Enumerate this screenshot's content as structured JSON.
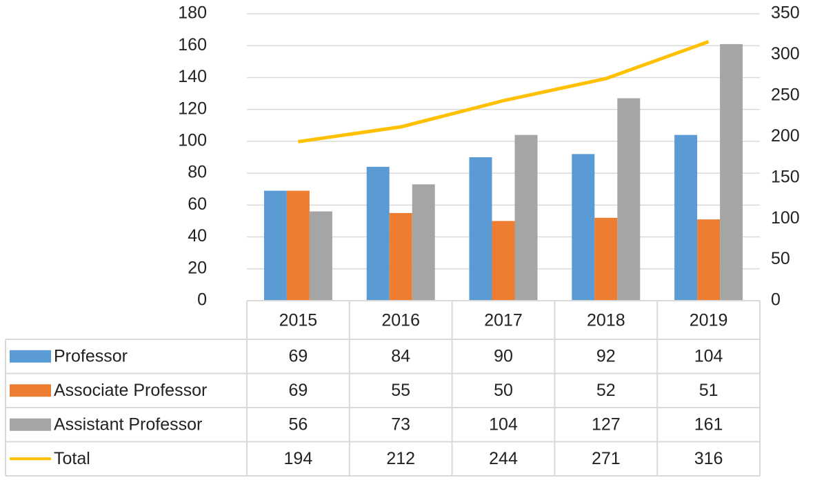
{
  "chart_data": {
    "type": "bar",
    "categories": [
      "2015",
      "2016",
      "2017",
      "2018",
      "2019"
    ],
    "series": [
      {
        "name": "Professor",
        "color": "#5b9bd5",
        "values": [
          69,
          84,
          90,
          92,
          104
        ]
      },
      {
        "name": "Associate Professor",
        "color": "#ed7d31",
        "values": [
          69,
          55,
          50,
          52,
          51
        ]
      },
      {
        "name": "Assistant Professor",
        "color": "#a5a5a5",
        "values": [
          56,
          73,
          104,
          127,
          161
        ]
      },
      {
        "name": "Total",
        "color": "#ffc000",
        "axis": "y2",
        "values": [
          194,
          212,
          244,
          271,
          316
        ]
      }
    ],
    "ylim": [
      0,
      180
    ],
    "yticks": [
      0,
      20,
      40,
      60,
      80,
      100,
      120,
      140,
      160,
      180
    ],
    "y2lim": [
      0,
      350
    ],
    "y2ticks": [
      0,
      50,
      100,
      150,
      200,
      250,
      300,
      350
    ],
    "grid": true,
    "data_table": true
  }
}
